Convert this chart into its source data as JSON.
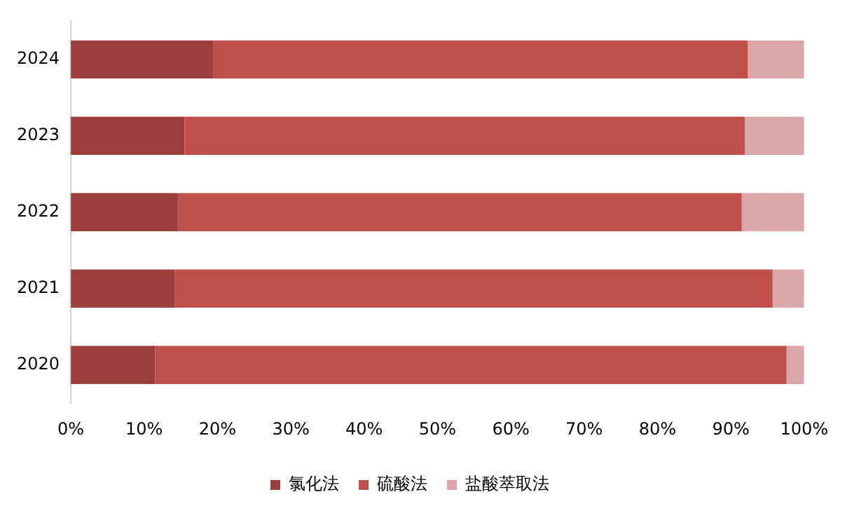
{
  "chart_data": {
    "type": "bar",
    "orientation": "horizontal",
    "stacked": true,
    "categories": [
      "2024",
      "2023",
      "2022",
      "2021",
      "2020"
    ],
    "series": [
      {
        "name": "氯化法",
        "color": "#9c3e3d",
        "values": [
          19.4,
          15.5,
          14.6,
          14.2,
          11.5
        ]
      },
      {
        "name": "硫酸法",
        "color": "#c0504d",
        "values": [
          72.9,
          76.4,
          76.9,
          81.5,
          86.1
        ]
      },
      {
        "name": "盐酸萃取法",
        "color": "#d9a7a7",
        "values": [
          7.7,
          8.1,
          8.5,
          4.3,
          2.4
        ]
      }
    ],
    "xlim": [
      0,
      100
    ],
    "xticks": [
      {
        "value": 0,
        "label": "0%"
      },
      {
        "value": 10,
        "label": "10%"
      },
      {
        "value": 20,
        "label": "20%"
      },
      {
        "value": 30,
        "label": "30%"
      },
      {
        "value": 40,
        "label": "40%"
      },
      {
        "value": 50,
        "label": "50%"
      },
      {
        "value": 60,
        "label": "60%"
      },
      {
        "value": 70,
        "label": "70%"
      },
      {
        "value": 80,
        "label": "80%"
      },
      {
        "value": 90,
        "label": "90%"
      },
      {
        "value": 100,
        "label": "100%"
      }
    ],
    "grid": false,
    "legend": "bottom"
  }
}
